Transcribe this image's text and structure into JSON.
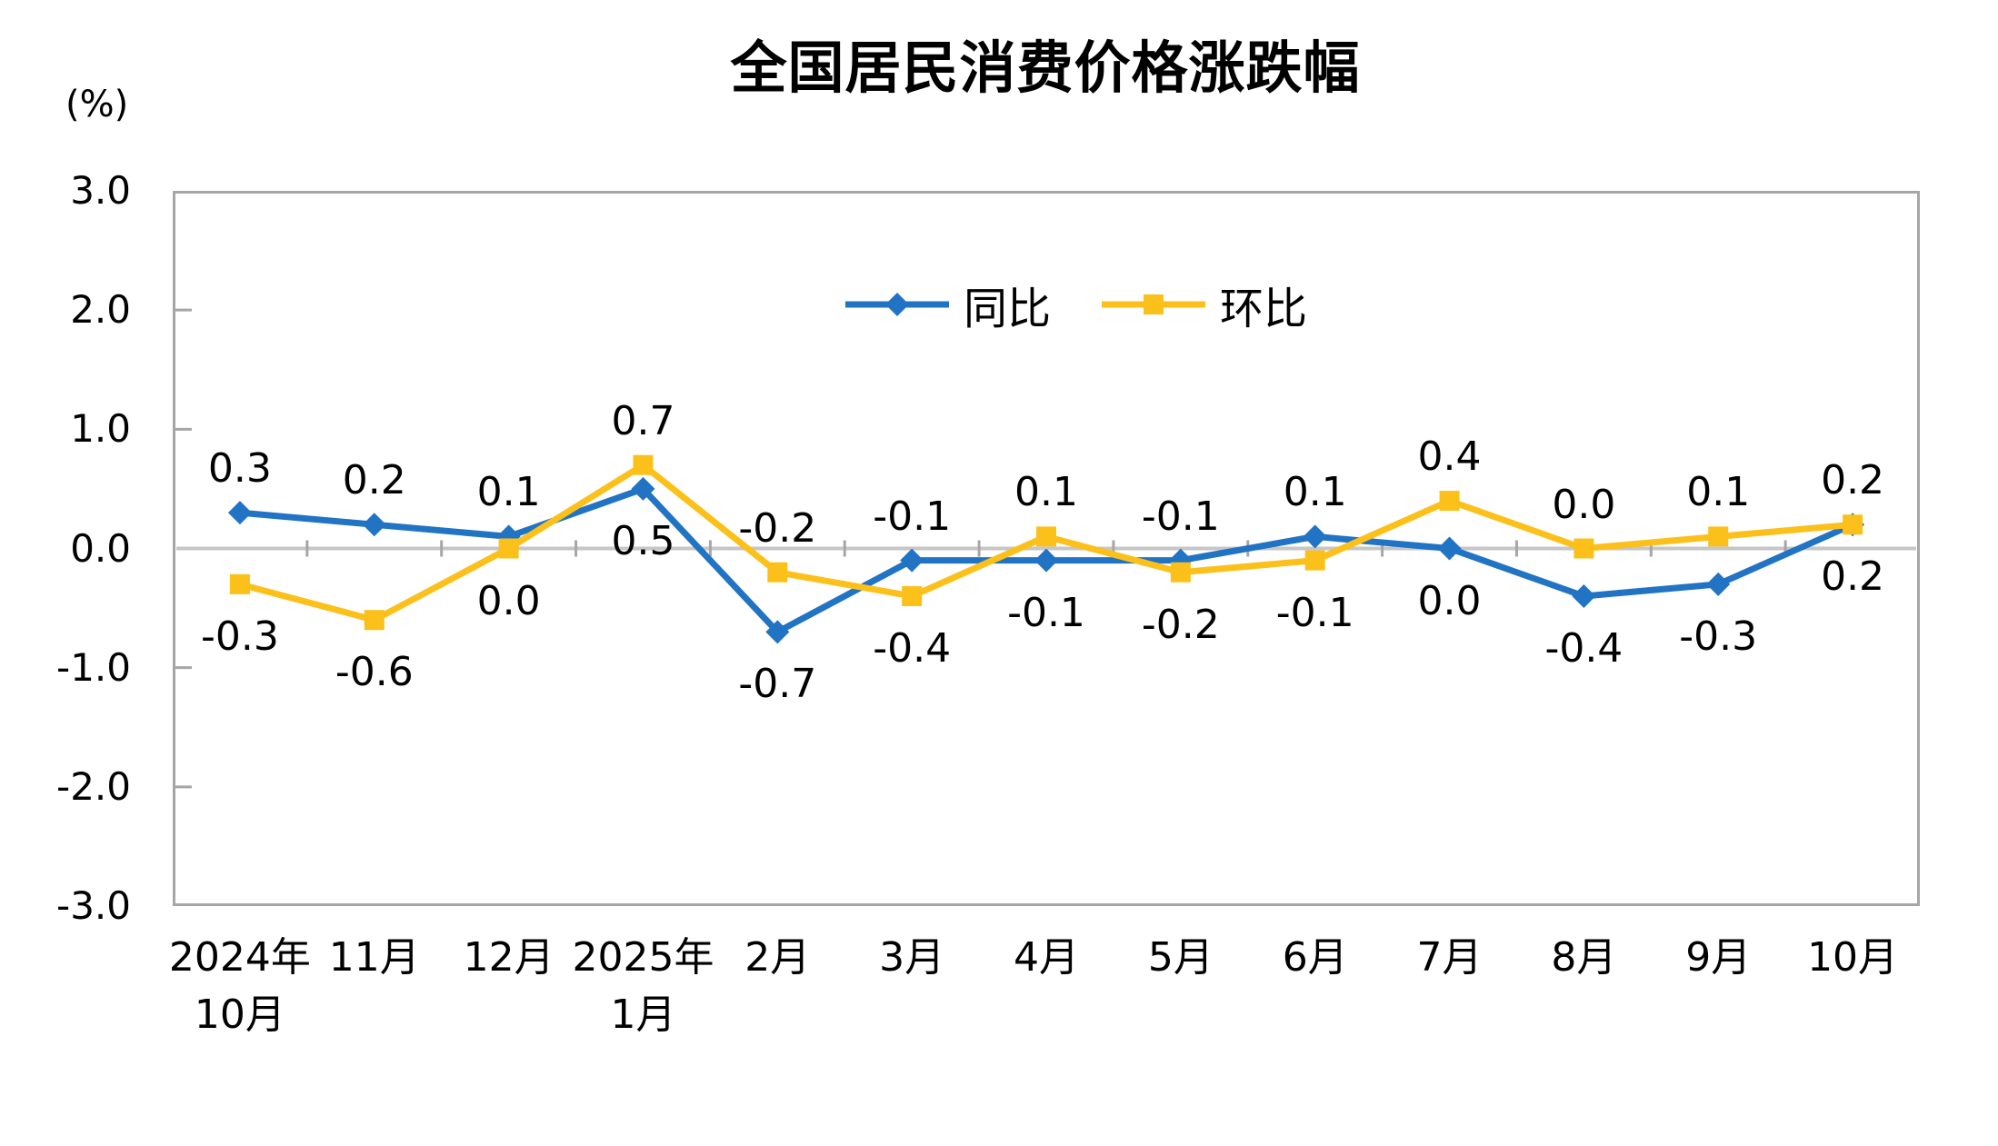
{
  "chart_data": {
    "type": "line",
    "title": "全国居民消费价格涨跌幅",
    "categories": [
      "2024年\n10月",
      "11月",
      "12月",
      "2025年\n1月",
      "2月",
      "3月",
      "4月",
      "5月",
      "6月",
      "7月",
      "8月",
      "9月",
      "10月"
    ],
    "series": [
      {
        "name": "同比",
        "marker": "diamond",
        "color": "#2173C4",
        "values": [
          0.3,
          0.2,
          0.1,
          0.5,
          -0.7,
          -0.1,
          -0.1,
          -0.1,
          0.1,
          0.0,
          -0.4,
          -0.3,
          0.2
        ]
      },
      {
        "name": "环比",
        "marker": "square",
        "color": "#FCC01A",
        "values": [
          -0.3,
          -0.6,
          0.0,
          0.7,
          -0.2,
          -0.4,
          0.1,
          -0.2,
          -0.1,
          0.4,
          0.0,
          0.1,
          0.2
        ]
      }
    ],
    "yAxis": {
      "unit": "(%)",
      "min": -3.0,
      "max": 3.0,
      "step": 1.0,
      "ticks": [
        "3.0",
        "2.0",
        "1.0",
        "0.0",
        "-1.0",
        "-2.0",
        "-3.0"
      ]
    },
    "legend_position": "top-inside",
    "grid": "zero-line-only",
    "data_labels": "value-one-decimal",
    "colors": {
      "zero_line": "#C6C6C6",
      "plot_border": "#A6A6A6",
      "tick": "#A6A6A6",
      "text": "#000000"
    }
  }
}
